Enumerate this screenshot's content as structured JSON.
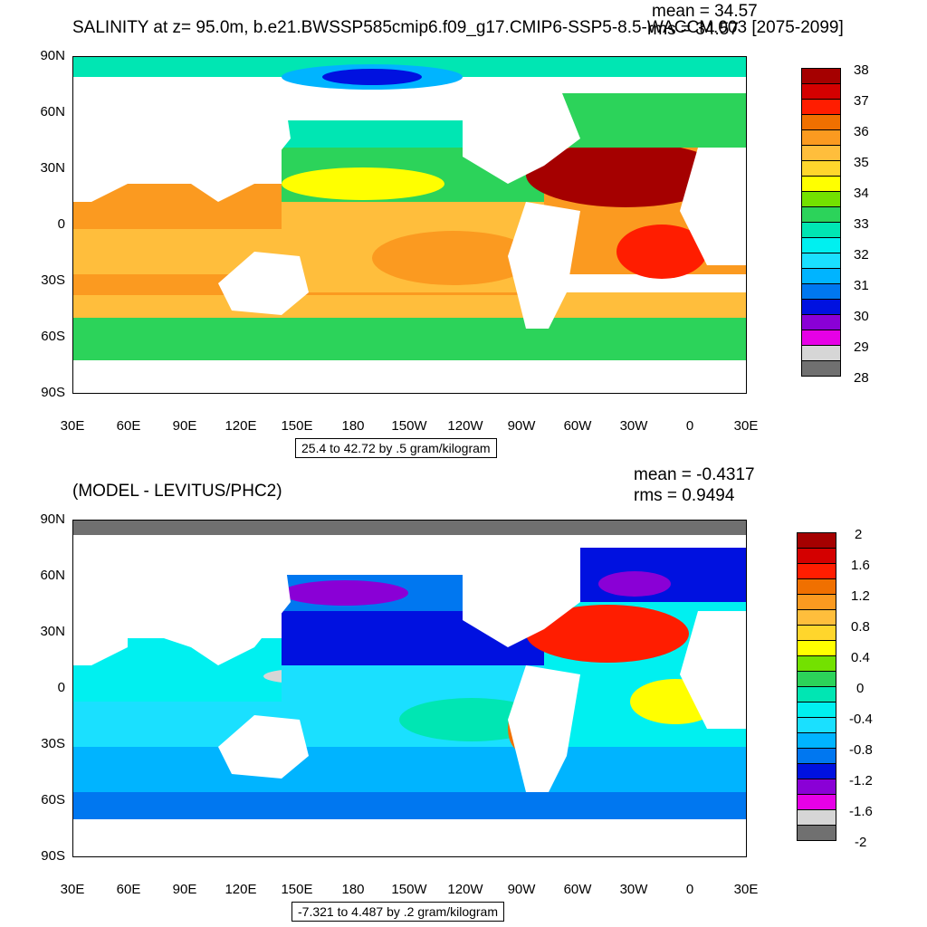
{
  "panels": [
    {
      "title": "SALINITY at z=  95.0m, b.e21.BWSSP585cmip6.f09_g17.CMIP6-SSP5-8.5-WACCM.003 [2075-2099]",
      "mean_label": "mean = 34.57",
      "rms_label": "rms = 34.57",
      "contour_info": "25.4 to 42.72 by .5 gram/kilogram",
      "colorbar_labels": [
        "38",
        "37",
        "36",
        "35",
        "34",
        "33",
        "32",
        "31",
        "30",
        "29",
        "28"
      ],
      "colorbar_colors": [
        "#a50000",
        "#d40000",
        "#ff1d00",
        "#f07000",
        "#fb9a20",
        "#ffbe3c",
        "#ffd62c",
        "#ffff00",
        "#73e100",
        "#2cd35a",
        "#00e6b3",
        "#00f0f0",
        "#1ae0ff",
        "#00b4ff",
        "#0077f0",
        "#0011e0",
        "#8a00d6",
        "#e600e6",
        "#d6d6d6",
        "#707070"
      ]
    },
    {
      "title": "(MODEL - LEVITUS/PHC2)",
      "mean_label": "mean = -0.4317",
      "rms_label": "rms = 0.9494",
      "contour_info": "-7.321 to 4.487 by .2 gram/kilogram",
      "colorbar_labels": [
        "2",
        "1.6",
        "1.2",
        "0.8",
        "0.4",
        "0",
        "-0.4",
        "-0.8",
        "-1.2",
        "-1.6",
        "-2"
      ],
      "colorbar_colors": [
        "#a50000",
        "#d40000",
        "#ff1d00",
        "#f07000",
        "#fb9a20",
        "#ffbe3c",
        "#ffd62c",
        "#ffff00",
        "#73e100",
        "#2cd35a",
        "#00e6b3",
        "#00f0f0",
        "#1ae0ff",
        "#00b4ff",
        "#0077f0",
        "#0011e0",
        "#8a00d6",
        "#e600e6",
        "#d6d6d6",
        "#707070"
      ]
    }
  ],
  "axes": {
    "lat_labels": [
      "90N",
      "60N",
      "30N",
      "0",
      "30S",
      "60S",
      "90S"
    ],
    "lon_labels": [
      "30E",
      "60E",
      "90E",
      "120E",
      "150E",
      "180",
      "150W",
      "120W",
      "90W",
      "60W",
      "30W",
      "0",
      "30E"
    ]
  }
}
